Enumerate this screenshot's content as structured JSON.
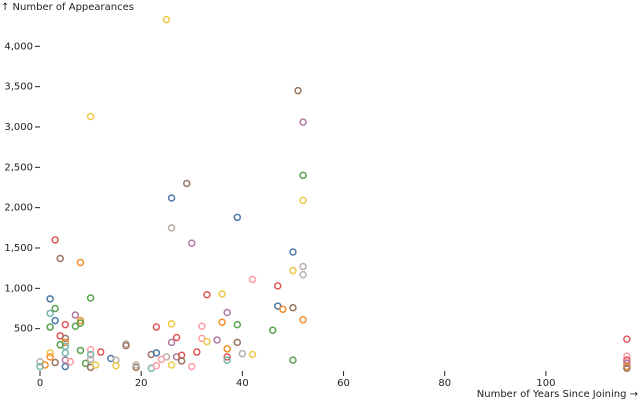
{
  "chart_data": {
    "type": "scatter",
    "y_label": "↑ Number of Appearances",
    "x_label": "Number of Years Since Joining →",
    "xlim": [
      0,
      118.6
    ],
    "ylim": [
      0,
      4450
    ],
    "xticks": [
      0,
      20,
      40,
      60,
      80,
      100
    ],
    "yticks": [
      500,
      {
        "value": 1000,
        "label": "1,000"
      },
      {
        "value": 1500,
        "label": "1,500"
      },
      {
        "value": 2000,
        "label": "2,000"
      },
      {
        "value": 2500,
        "label": "2,500"
      },
      {
        "value": 3000,
        "label": "3,000"
      },
      {
        "value": 3500,
        "label": "3,500"
      },
      {
        "value": 4000,
        "label": "4,000"
      }
    ],
    "x": [
      25,
      10,
      51,
      52,
      52,
      52,
      29,
      26,
      39,
      30,
      26,
      3,
      4,
      8,
      50,
      52,
      52,
      50,
      42,
      47,
      2,
      10,
      33,
      36,
      47,
      48,
      50,
      2,
      3,
      7,
      8,
      7,
      2,
      5,
      8,
      23,
      26,
      37,
      36,
      39,
      46,
      52,
      32,
      3,
      4,
      5,
      5,
      5,
      4,
      17,
      17,
      27,
      26,
      35,
      32,
      33,
      39,
      8,
      10,
      12,
      10,
      2,
      2,
      5,
      14,
      15,
      22,
      23,
      25,
      24,
      27,
      28,
      31,
      37,
      37,
      40,
      42,
      37,
      50,
      0,
      1,
      3,
      5,
      5,
      6,
      9,
      10,
      11,
      10,
      15,
      19,
      19,
      22,
      23,
      26,
      28,
      30,
      0,
      116,
      116,
      116,
      116,
      116,
      116
    ],
    "y": [
      4330,
      3130,
      3450,
      3060,
      2400,
      2090,
      2300,
      2120,
      1880,
      1560,
      1750,
      1600,
      1370,
      1320,
      1450,
      1270,
      1170,
      1220,
      1110,
      1030,
      870,
      880,
      920,
      930,
      780,
      740,
      760,
      690,
      750,
      670,
      600,
      530,
      520,
      550,
      570,
      520,
      560,
      700,
      580,
      550,
      480,
      610,
      530,
      600,
      410,
      380,
      330,
      280,
      300,
      310,
      290,
      390,
      330,
      360,
      380,
      340,
      330,
      230,
      240,
      210,
      180,
      200,
      150,
      200,
      130,
      110,
      180,
      200,
      150,
      120,
      150,
      170,
      210,
      250,
      150,
      190,
      180,
      110,
      110,
      90,
      50,
      80,
      30,
      110,
      90,
      70,
      20,
      50,
      120,
      40,
      20,
      50,
      10,
      40,
      50,
      100,
      30,
      30,
      370,
      160,
      110,
      70,
      30,
      10
    ],
    "colors": [
      "#edc949",
      "#edc949",
      "#9c755f",
      "#af7aa1",
      "#59a14f",
      "#edc949",
      "#9c755f",
      "#4e79a7",
      "#4e79a7",
      "#af7aa1",
      "#bab0ab",
      "#e15759",
      "#9c755f",
      "#f28e2c",
      "#4e79a7",
      "#bab0ab",
      "#bab0ab",
      "#edc949",
      "#ff9da7",
      "#e15759",
      "#4e79a7",
      "#59a14f",
      "#e15759",
      "#edc949",
      "#4e79a7",
      "#f28e2c",
      "#9c755f",
      "#76b7b2",
      "#59a14f",
      "#af7aa1",
      "#f28e2c",
      "#59a14f",
      "#59a14f",
      "#e15759",
      "#59a14f",
      "#e15759",
      "#edc949",
      "#af7aa1",
      "#f28e2c",
      "#59a14f",
      "#59a14f",
      "#f28e2c",
      "#ff9da7",
      "#4e79a7",
      "#e15759",
      "#9c755f",
      "#f28e2c",
      "#76b7b2",
      "#59a14f",
      "#bab0ab",
      "#9c755f",
      "#e15759",
      "#af7aa1",
      "#af7aa1",
      "#ff9da7",
      "#edc949",
      "#9c755f",
      "#59a14f",
      "#ff9da7",
      "#e15759",
      "#76b7b2",
      "#edc949",
      "#f28e2c",
      "#76b7b2",
      "#4e79a7",
      "#bab0ab",
      "#9c755f",
      "#4e79a7",
      "#bab0ab",
      "#ff9da7",
      "#af7aa1",
      "#e15759",
      "#e15759",
      "#f28e2c",
      "#e15759",
      "#bab0ab",
      "#edc949",
      "#76b7b2",
      "#59a14f",
      "#bab0ab",
      "#f28e2c",
      "#9c755f",
      "#4e79a7",
      "#af7aa1",
      "#ff9da7",
      "#59a14f",
      "#9c755f",
      "#edc949",
      "#bab0ab",
      "#edc949",
      "#9c755f",
      "#bab0ab",
      "#76b7b2",
      "#ff9da7",
      "#edc949",
      "#9c755f",
      "#ff9da7",
      "#76b7b2",
      "#e15759",
      "#ff9da7",
      "#e15759",
      "#af7aa1",
      "#f28e2c",
      "#9c755f"
    ]
  }
}
